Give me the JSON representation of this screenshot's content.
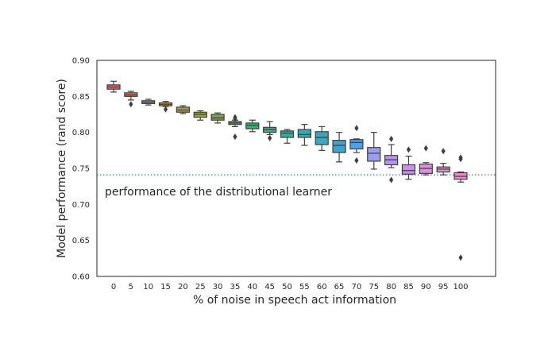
{
  "chart_data": {
    "type": "box",
    "xlabel": "% of noise in speech act information",
    "ylabel": "Model performance (rand score)",
    "ylim": [
      0.6,
      0.9
    ],
    "yticks": [
      "0.60",
      "0.65",
      "0.70",
      "0.75",
      "0.80",
      "0.85",
      "0.90"
    ],
    "grid": false,
    "reference_line": {
      "y": 0.741,
      "style": "dotted",
      "color": "#4c72b0"
    },
    "annotation": {
      "text": "performance of the distributional learner",
      "x_category": "0",
      "y": 0.718
    },
    "categories": [
      "0",
      "5",
      "10",
      "15",
      "20",
      "25",
      "30",
      "35",
      "40",
      "45",
      "50",
      "55",
      "60",
      "65",
      "70",
      "75",
      "80",
      "85",
      "90",
      "95",
      "100"
    ],
    "boxes": [
      {
        "q1": 0.86,
        "median": 0.863,
        "q3": 0.866,
        "whislo": 0.856,
        "whishi": 0.871,
        "fliers": [],
        "color": "#e1686b"
      },
      {
        "q1": 0.85,
        "median": 0.852,
        "q3": 0.855,
        "whislo": 0.845,
        "whishi": 0.857,
        "fliers": [
          0.839
        ],
        "color": "#e07b58"
      },
      {
        "q1": 0.84,
        "median": 0.842,
        "q3": 0.844,
        "whislo": 0.838,
        "whishi": 0.846,
        "fliers": [],
        "color": "#d2874a"
      },
      {
        "q1": 0.837,
        "median": 0.839,
        "q3": 0.841,
        "whislo": 0.836,
        "whishi": 0.843,
        "fliers": [
          0.832
        ],
        "color": "#c0913c"
      },
      {
        "q1": 0.828,
        "median": 0.831,
        "q3": 0.835,
        "whislo": 0.826,
        "whishi": 0.837,
        "fliers": [],
        "color": "#ac9b36"
      },
      {
        "q1": 0.821,
        "median": 0.825,
        "q3": 0.828,
        "whislo": 0.817,
        "whishi": 0.83,
        "fliers": [],
        "color": "#98a238"
      },
      {
        "q1": 0.817,
        "median": 0.82,
        "q3": 0.825,
        "whislo": 0.813,
        "whishi": 0.827,
        "fliers": [],
        "color": "#7fa83c"
      },
      {
        "q1": 0.811,
        "median": 0.813,
        "q3": 0.815,
        "whislo": 0.808,
        "whishi": 0.817,
        "fliers": [
          0.794,
          0.819,
          0.821
        ],
        "color": "#5cad50"
      },
      {
        "q1": 0.805,
        "median": 0.81,
        "q3": 0.813,
        "whislo": 0.801,
        "whishi": 0.817,
        "fliers": [],
        "color": "#3eae6f"
      },
      {
        "q1": 0.8,
        "median": 0.804,
        "q3": 0.807,
        "whislo": 0.797,
        "whishi": 0.815,
        "fliers": [
          0.792
        ],
        "color": "#36ad88"
      },
      {
        "q1": 0.793,
        "median": 0.799,
        "q3": 0.802,
        "whislo": 0.785,
        "whishi": 0.804,
        "fliers": [],
        "color": "#38ab9b"
      },
      {
        "q1": 0.793,
        "median": 0.797,
        "q3": 0.804,
        "whislo": 0.782,
        "whishi": 0.811,
        "fliers": [],
        "color": "#3aa9ab"
      },
      {
        "q1": 0.783,
        "median": 0.793,
        "q3": 0.801,
        "whislo": 0.775,
        "whishi": 0.808,
        "fliers": [],
        "color": "#3ba8ba"
      },
      {
        "q1": 0.772,
        "median": 0.782,
        "q3": 0.789,
        "whislo": 0.759,
        "whishi": 0.8,
        "fliers": [],
        "color": "#3ea4cc"
      },
      {
        "q1": 0.777,
        "median": 0.786,
        "q3": 0.79,
        "whislo": 0.772,
        "whishi": 0.791,
        "fliers": [
          0.806,
          0.761
        ],
        "color": "#52a0e0"
      },
      {
        "q1": 0.76,
        "median": 0.771,
        "q3": 0.779,
        "whislo": 0.749,
        "whishi": 0.8,
        "fliers": [],
        "color": "#9b9ef0"
      },
      {
        "q1": 0.755,
        "median": 0.762,
        "q3": 0.768,
        "whislo": 0.751,
        "whishi": 0.783,
        "fliers": [
          0.791,
          0.734
        ],
        "color": "#b496f0"
      },
      {
        "q1": 0.742,
        "median": 0.747,
        "q3": 0.755,
        "whislo": 0.735,
        "whishi": 0.767,
        "fliers": [
          0.776
        ],
        "color": "#ca90ec"
      },
      {
        "q1": 0.743,
        "median": 0.75,
        "q3": 0.756,
        "whislo": 0.741,
        "whishi": 0.758,
        "fliers": [
          0.778
        ],
        "color": "#e08ee5"
      },
      {
        "q1": 0.745,
        "median": 0.749,
        "q3": 0.752,
        "whislo": 0.741,
        "whishi": 0.757,
        "fliers": [
          0.774
        ],
        "color": "#ea8ad7"
      },
      {
        "q1": 0.735,
        "median": 0.739,
        "q3": 0.744,
        "whislo": 0.731,
        "whishi": 0.745,
        "fliers": [
          0.765,
          0.763,
          0.626
        ],
        "color": "#f089c4"
      }
    ]
  }
}
